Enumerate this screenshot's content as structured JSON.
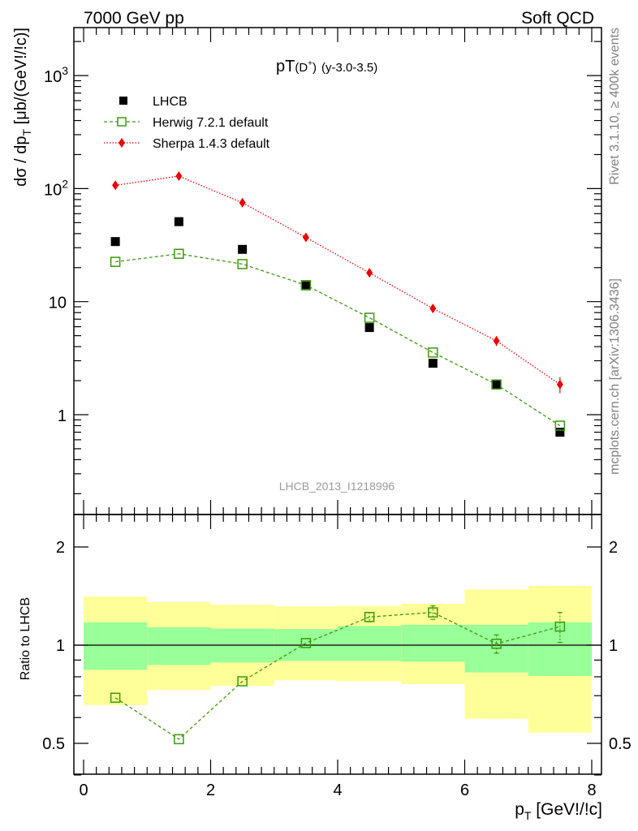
{
  "header": {
    "left": "7000 GeV pp",
    "right": "Soft QCD"
  },
  "side_text": {
    "rivet": "Rivet 3.1.10, ≥ 400k events",
    "mcplots": "mcplots.cern.ch [arXiv:1306.3436]"
  },
  "main_title": {
    "base": "pT",
    "paren_open": "(D",
    "sup": "+",
    "paren_close": ")",
    "suffix": "(y-3.0-3.5)"
  },
  "watermark": "LHCB_2013_I1218996",
  "colors": {
    "herwig": "#3a9a0a",
    "sherpa": "#ee0000",
    "data": "#000000",
    "band_inner": "#99ff99",
    "band_outer": "#ffff99"
  },
  "chart_data": [
    {
      "type": "scatter",
      "ylabel": {
        "main": "dσ / dp",
        "sub": "T",
        "units": " [μb/(GeV!/!c)]"
      },
      "yscale": "log",
      "ylim": [
        0.15,
        2800
      ],
      "xlim": [
        -0.3,
        8.15
      ],
      "yticks": [
        {
          "label_base": "10",
          "label_exp": "3",
          "label_text": "",
          "value": 1000
        },
        {
          "label_base": "10",
          "label_exp": "2",
          "label_text": "",
          "value": 100
        },
        {
          "label_base": "",
          "label_exp": "",
          "label_text": "10",
          "value": 10
        },
        {
          "label_base": "",
          "label_exp": "",
          "label_text": "1",
          "value": 1
        }
      ],
      "legend_position": "top-left",
      "series": [
        {
          "name": "LHCB",
          "style": "data",
          "x": [
            0.5,
            1.5,
            2.5,
            3.5,
            4.5,
            5.5,
            6.5,
            7.5
          ],
          "y": [
            34,
            51,
            29,
            13.8,
            5.9,
            2.85,
            1.85,
            0.7
          ]
        },
        {
          "name": "Herwig 7.2.1 default",
          "style": "herwig",
          "x": [
            0.5,
            1.5,
            2.5,
            3.5,
            4.5,
            5.5,
            6.5,
            7.5
          ],
          "y": [
            22.5,
            26.5,
            21.5,
            14.0,
            7.2,
            3.55,
            1.85,
            0.8
          ]
        },
        {
          "name": "Sherpa 1.4.3 default",
          "style": "sherpa",
          "x": [
            0.5,
            1.5,
            2.5,
            3.5,
            4.5,
            5.5,
            6.5,
            7.5
          ],
          "y": [
            107,
            129,
            75,
            37,
            18,
            8.7,
            4.5,
            1.85
          ],
          "yerr": [
            0,
            0,
            0,
            0,
            0,
            0,
            0.45,
            0.3
          ]
        }
      ]
    },
    {
      "type": "line",
      "ylabel": "Ratio to LHCB",
      "xlabel": {
        "main": "p",
        "sub": "T",
        "units": " [GeV!/!c]"
      },
      "ylim": [
        0.35,
        2.45
      ],
      "xlim": [
        -0.3,
        8.15
      ],
      "xticks": [
        0,
        2,
        4,
        6,
        8
      ],
      "yticks": [
        {
          "label": "2",
          "value": 2
        },
        {
          "label": "1",
          "value": 1
        },
        {
          "label": "0.5",
          "value": 0.5
        }
      ],
      "reference_line": 1,
      "bands": {
        "x_edges": [
          0,
          1,
          2,
          3,
          4,
          5,
          6,
          7,
          8
        ],
        "inner_low": [
          0.84,
          0.87,
          0.885,
          0.895,
          0.895,
          0.89,
          0.825,
          0.805
        ],
        "inner_high": [
          1.175,
          1.135,
          1.125,
          1.12,
          1.145,
          1.155,
          1.155,
          1.175
        ],
        "outer_low": [
          0.655,
          0.73,
          0.75,
          0.78,
          0.775,
          0.76,
          0.595,
          0.54
        ],
        "outer_high": [
          1.41,
          1.355,
          1.33,
          1.315,
          1.32,
          1.34,
          1.48,
          1.52
        ]
      },
      "series": [
        {
          "name": "Herwig 7.2.1 default",
          "style": "herwig",
          "x": [
            0.5,
            1.5,
            2.5,
            3.5,
            4.5,
            5.5,
            6.5,
            7.5
          ],
          "y": [
            0.69,
            0.515,
            0.775,
            1.015,
            1.22,
            1.26,
            1.01,
            1.14
          ],
          "yerr": [
            0,
            0,
            0,
            0,
            0.04,
            0.06,
            0.065,
            0.12
          ]
        }
      ]
    }
  ]
}
